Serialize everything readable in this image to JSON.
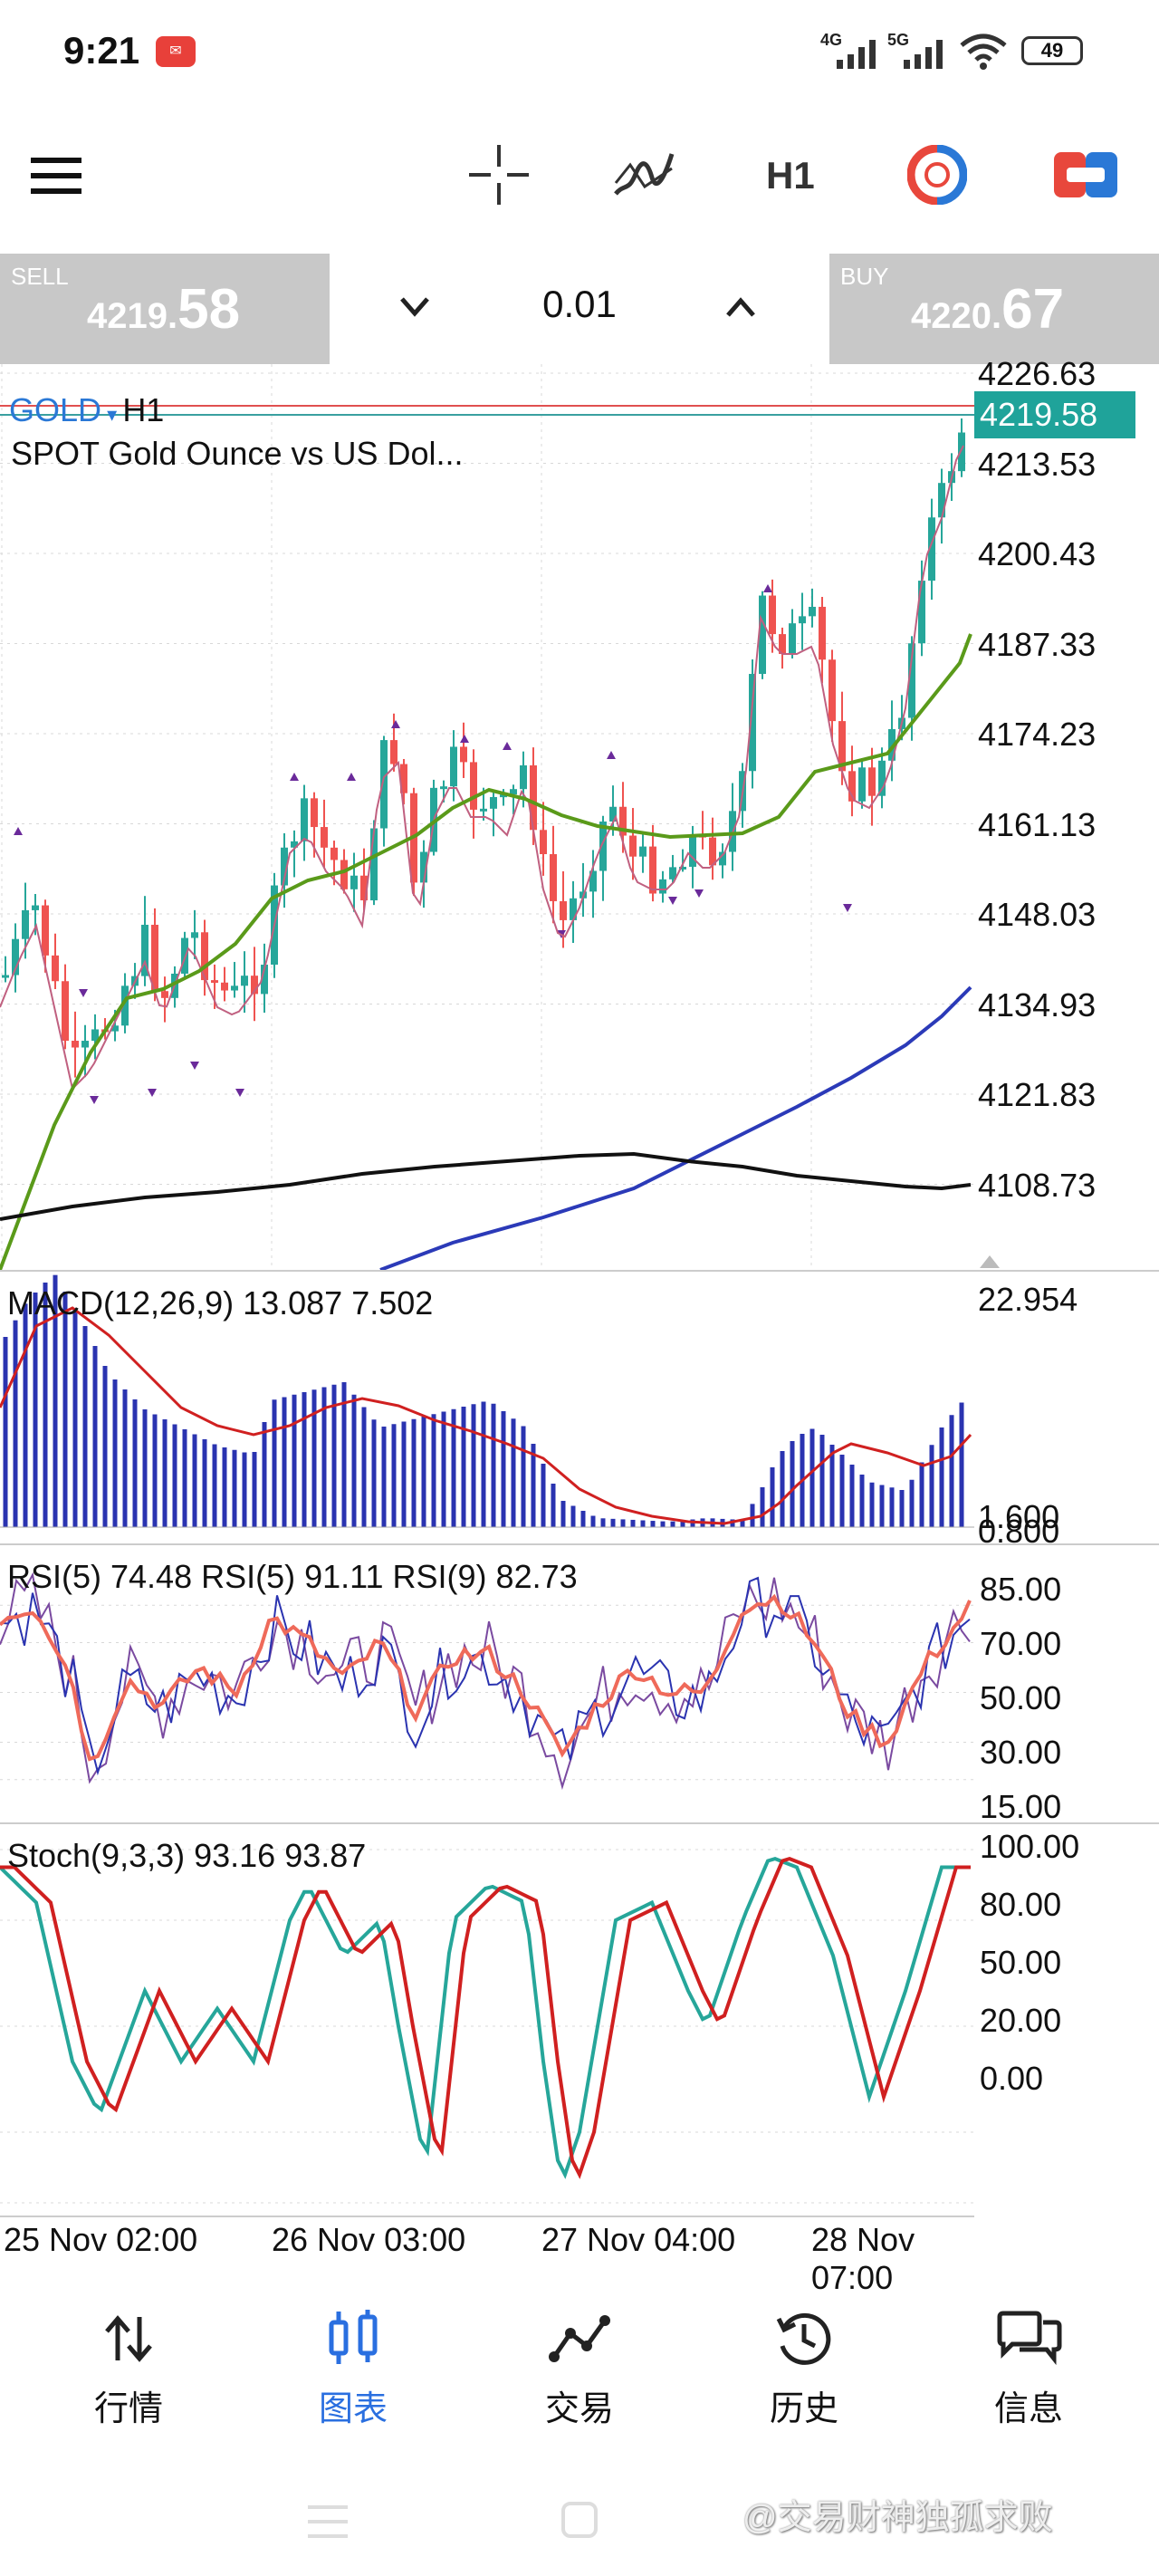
{
  "status_bar": {
    "time": "9:21",
    "notification_icon": "news-app-icon",
    "network_4g": "4G",
    "network_5g": "5G",
    "battery": "49"
  },
  "toolbar": {
    "menu_icon": "hamburger-menu-icon",
    "crosshair_icon": "crosshair-icon",
    "indicators_icon": "indicators-icon",
    "timeframe": "H1",
    "trade_icon": "one-click-trade-icon",
    "toggle_icon": "toggle-panel-icon"
  },
  "trade": {
    "sell_label": "SELL",
    "sell_price_small": "4219.",
    "sell_price_big": "58",
    "lot": "0.01",
    "buy_label": "BUY",
    "buy_price_small": "4220.",
    "buy_price_big": "67"
  },
  "chart": {
    "symbol": "GOLD",
    "timeframe": "H1",
    "description": "SPOT Gold Ounce vs US Dol...",
    "price_badge": "4219.58",
    "price_axis": [
      "4226.63",
      "4213.53",
      "4200.43",
      "4187.33",
      "4174.23",
      "4161.13",
      "4148.03",
      "4134.93",
      "4121.83",
      "4108.73"
    ],
    "time_axis": [
      "25 Nov 02:00",
      "26 Nov 03:00",
      "27 Nov 04:00",
      "28 Nov 07:00"
    ],
    "colors": {
      "bull": "#26a69a",
      "bear": "#ef5350",
      "ma_fast": "#c06080",
      "ma_mid": "#5a9a1a",
      "ma_slow": "#2b3ab8",
      "ma_long": "#111111",
      "grid": "#d8d8d8"
    }
  },
  "macd": {
    "title": "MACD(12,26,9) 13.087 7.502",
    "axis": [
      "22.954",
      "1.600",
      "0.800"
    ]
  },
  "rsi": {
    "title": "RSI(5) 74.48 RSI(5) 91.11 RSI(9) 82.73",
    "axis": [
      "85.00",
      "70.00",
      "50.00",
      "30.00",
      "15.00"
    ]
  },
  "stoch": {
    "title": "Stoch(9,3,3) 93.16 93.87",
    "axis": [
      "100.00",
      "80.00",
      "50.00",
      "20.00",
      "0.00"
    ]
  },
  "bottom_nav": [
    {
      "label": "行情",
      "icon": "quotes-arrows-icon"
    },
    {
      "label": "图表",
      "icon": "chart-candles-icon"
    },
    {
      "label": "交易",
      "icon": "trade-line-icon"
    },
    {
      "label": "历史",
      "icon": "history-clock-icon"
    },
    {
      "label": "信息",
      "icon": "messages-icon"
    }
  ],
  "watermark": "@交易财神独孤求败"
}
